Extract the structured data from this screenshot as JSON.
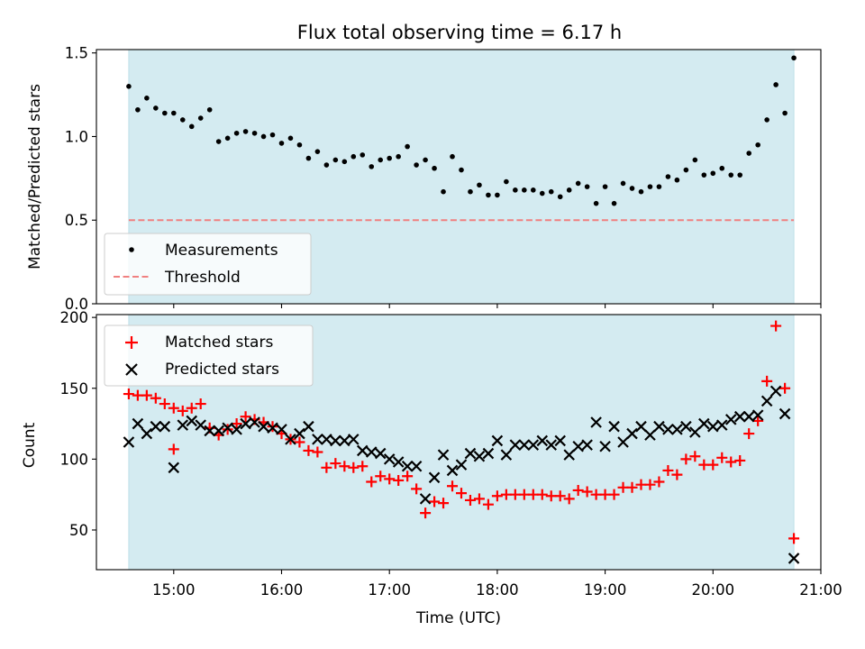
{
  "chart_data": [
    {
      "type": "scatter",
      "title": "Flux total observing time = 6.17 h",
      "ylabel": "Matched/Predicted stars",
      "xlabel": "",
      "ylim": [
        0,
        1.52
      ],
      "yticks": [
        "0.0",
        "0.5",
        "1.0",
        "1.5"
      ],
      "ytick_values": [
        0,
        0.5,
        1.0,
        1.5
      ],
      "shaded_span": [
        "14:35",
        "20:45"
      ],
      "shaded_color": "#d4ebf1",
      "legend": {
        "position": "lower-left"
      },
      "series": [
        {
          "name": "Measurements",
          "marker": "dot",
          "color": "#000000",
          "points": [
            [
              "14:35",
              1.3
            ],
            [
              "14:40",
              1.16
            ],
            [
              "14:45",
              1.23
            ],
            [
              "14:50",
              1.17
            ],
            [
              "14:55",
              1.14
            ],
            [
              "15:00",
              1.14
            ],
            [
              "15:05",
              1.1
            ],
            [
              "15:10",
              1.06
            ],
            [
              "15:15",
              1.11
            ],
            [
              "15:20",
              1.16
            ],
            [
              "15:25",
              0.97
            ],
            [
              "15:30",
              0.99
            ],
            [
              "15:35",
              1.02
            ],
            [
              "15:40",
              1.03
            ],
            [
              "15:45",
              1.02
            ],
            [
              "15:50",
              1.0
            ],
            [
              "15:55",
              1.01
            ],
            [
              "16:00",
              0.96
            ],
            [
              "16:05",
              0.99
            ],
            [
              "16:10",
              0.95
            ],
            [
              "16:15",
              0.87
            ],
            [
              "16:20",
              0.91
            ],
            [
              "16:25",
              0.83
            ],
            [
              "16:30",
              0.86
            ],
            [
              "16:35",
              0.85
            ],
            [
              "16:40",
              0.88
            ],
            [
              "16:45",
              0.89
            ],
            [
              "16:50",
              0.82
            ],
            [
              "16:55",
              0.86
            ],
            [
              "17:00",
              0.87
            ],
            [
              "17:05",
              0.88
            ],
            [
              "17:10",
              0.94
            ],
            [
              "17:15",
              0.83
            ],
            [
              "17:20",
              0.86
            ],
            [
              "17:25",
              0.81
            ],
            [
              "17:30",
              0.67
            ],
            [
              "17:35",
              0.88
            ],
            [
              "17:40",
              0.8
            ],
            [
              "17:45",
              0.67
            ],
            [
              "17:50",
              0.71
            ],
            [
              "17:55",
              0.65
            ],
            [
              "18:00",
              0.65
            ],
            [
              "18:05",
              0.73
            ],
            [
              "18:10",
              0.68
            ],
            [
              "18:15",
              0.68
            ],
            [
              "18:20",
              0.68
            ],
            [
              "18:25",
              0.66
            ],
            [
              "18:30",
              0.67
            ],
            [
              "18:35",
              0.64
            ],
            [
              "18:40",
              0.68
            ],
            [
              "18:45",
              0.72
            ],
            [
              "18:50",
              0.7
            ],
            [
              "18:55",
              0.6
            ],
            [
              "19:00",
              0.7
            ],
            [
              "19:05",
              0.6
            ],
            [
              "19:10",
              0.72
            ],
            [
              "19:15",
              0.69
            ],
            [
              "19:20",
              0.67
            ],
            [
              "19:25",
              0.7
            ],
            [
              "19:30",
              0.7
            ],
            [
              "19:35",
              0.76
            ],
            [
              "19:40",
              0.74
            ],
            [
              "19:45",
              0.8
            ],
            [
              "19:50",
              0.86
            ],
            [
              "19:55",
              0.77
            ],
            [
              "20:00",
              0.78
            ],
            [
              "20:05",
              0.81
            ],
            [
              "20:10",
              0.77
            ],
            [
              "20:15",
              0.77
            ],
            [
              "20:20",
              0.9
            ],
            [
              "20:25",
              0.95
            ],
            [
              "20:30",
              1.1
            ],
            [
              "20:35",
              1.31
            ],
            [
              "20:40",
              1.14
            ],
            [
              "20:45",
              1.47
            ]
          ]
        },
        {
          "name": "Threshold",
          "marker": "dashed-line",
          "color": "#f08080",
          "points": [
            [
              "14:35",
              0.5
            ],
            [
              "20:45",
              0.5
            ]
          ]
        }
      ]
    },
    {
      "type": "scatter",
      "title": "",
      "ylabel": "Count",
      "xlabel": "Time (UTC)",
      "ylim": [
        22,
        202
      ],
      "yticks": [
        "50",
        "100",
        "150",
        "200"
      ],
      "ytick_values": [
        50,
        100,
        150,
        200
      ],
      "xlim": [
        "14:17",
        "21:00"
      ],
      "xticks": [
        "15:00",
        "16:00",
        "17:00",
        "18:00",
        "19:00",
        "20:00",
        "21:00"
      ],
      "shaded_span": [
        "14:35",
        "20:45"
      ],
      "shaded_color": "#d4ebf1",
      "legend": {
        "position": "top-left"
      },
      "series": [
        {
          "name": "Matched stars",
          "marker": "plus",
          "color": "#ff0000",
          "points": [
            [
              "14:35",
              146
            ],
            [
              "14:40",
              145
            ],
            [
              "14:45",
              145
            ],
            [
              "14:50",
              143
            ],
            [
              "14:55",
              139
            ],
            [
              "15:00",
              107
            ],
            [
              "15:00",
              136
            ],
            [
              "15:05",
              134
            ],
            [
              "15:10",
              136
            ],
            [
              "15:15",
              139
            ],
            [
              "15:20",
              122
            ],
            [
              "15:25",
              117
            ],
            [
              "15:30",
              121
            ],
            [
              "15:35",
              125
            ],
            [
              "15:40",
              130
            ],
            [
              "15:45",
              128
            ],
            [
              "15:50",
              126
            ],
            [
              "15:55",
              123
            ],
            [
              "16:00",
              118
            ],
            [
              "16:05",
              114
            ],
            [
              "16:10",
              112
            ],
            [
              "16:15",
              106
            ],
            [
              "16:20",
              105
            ],
            [
              "16:25",
              94
            ],
            [
              "16:30",
              97
            ],
            [
              "16:35",
              95
            ],
            [
              "16:40",
              94
            ],
            [
              "16:45",
              95
            ],
            [
              "16:50",
              84
            ],
            [
              "16:55",
              88
            ],
            [
              "17:00",
              86
            ],
            [
              "17:05",
              85
            ],
            [
              "17:10",
              88
            ],
            [
              "17:15",
              79
            ],
            [
              "17:20",
              62
            ],
            [
              "17:25",
              70
            ],
            [
              "17:30",
              69
            ],
            [
              "17:35",
              81
            ],
            [
              "17:40",
              76
            ],
            [
              "17:45",
              71
            ],
            [
              "17:50",
              72
            ],
            [
              "17:55",
              68
            ],
            [
              "18:00",
              74
            ],
            [
              "18:05",
              75
            ],
            [
              "18:10",
              75
            ],
            [
              "18:15",
              75
            ],
            [
              "18:20",
              75
            ],
            [
              "18:25",
              75
            ],
            [
              "18:30",
              74
            ],
            [
              "18:35",
              74
            ],
            [
              "18:40",
              72
            ],
            [
              "18:45",
              78
            ],
            [
              "18:50",
              77
            ],
            [
              "18:55",
              75
            ],
            [
              "19:00",
              75
            ],
            [
              "19:05",
              75
            ],
            [
              "19:10",
              80
            ],
            [
              "19:15",
              80
            ],
            [
              "19:20",
              82
            ],
            [
              "19:25",
              82
            ],
            [
              "19:30",
              84
            ],
            [
              "19:35",
              92
            ],
            [
              "19:40",
              89
            ],
            [
              "19:45",
              100
            ],
            [
              "19:50",
              102
            ],
            [
              "19:55",
              96
            ],
            [
              "20:00",
              96
            ],
            [
              "20:05",
              101
            ],
            [
              "20:10",
              98
            ],
            [
              "20:15",
              99
            ],
            [
              "20:20",
              118
            ],
            [
              "20:25",
              127
            ],
            [
              "20:30",
              155
            ],
            [
              "20:35",
              194
            ],
            [
              "20:40",
              150
            ],
            [
              "20:45",
              44
            ]
          ]
        },
        {
          "name": "Predicted stars",
          "marker": "x",
          "color": "#000000",
          "points": [
            [
              "14:35",
              112
            ],
            [
              "14:40",
              125
            ],
            [
              "14:45",
              118
            ],
            [
              "14:50",
              123
            ],
            [
              "14:55",
              123
            ],
            [
              "15:00",
              94
            ],
            [
              "15:05",
              124
            ],
            [
              "15:10",
              127
            ],
            [
              "15:15",
              124
            ],
            [
              "15:20",
              120
            ],
            [
              "15:25",
              120
            ],
            [
              "15:30",
              122
            ],
            [
              "15:35",
              121
            ],
            [
              "15:40",
              125
            ],
            [
              "15:45",
              126
            ],
            [
              "15:50",
              123
            ],
            [
              "15:55",
              122
            ],
            [
              "16:00",
              121
            ],
            [
              "16:05",
              114
            ],
            [
              "16:10",
              118
            ],
            [
              "16:15",
              123
            ],
            [
              "16:20",
              114
            ],
            [
              "16:25",
              114
            ],
            [
              "16:30",
              113
            ],
            [
              "16:35",
              113
            ],
            [
              "16:40",
              114
            ],
            [
              "16:45",
              106
            ],
            [
              "16:50",
              105
            ],
            [
              "16:55",
              104
            ],
            [
              "17:00",
              100
            ],
            [
              "17:05",
              98
            ],
            [
              "17:10",
              95
            ],
            [
              "17:15",
              95
            ],
            [
              "17:20",
              72
            ],
            [
              "17:25",
              87
            ],
            [
              "17:30",
              103
            ],
            [
              "17:35",
              92
            ],
            [
              "17:40",
              96
            ],
            [
              "17:45",
              104
            ],
            [
              "17:50",
              102
            ],
            [
              "17:55",
              104
            ],
            [
              "18:00",
              113
            ],
            [
              "18:05",
              103
            ],
            [
              "18:10",
              110
            ],
            [
              "18:15",
              110
            ],
            [
              "18:20",
              110
            ],
            [
              "18:25",
              113
            ],
            [
              "18:30",
              110
            ],
            [
              "18:35",
              113
            ],
            [
              "18:40",
              103
            ],
            [
              "18:45",
              109
            ],
            [
              "18:50",
              110
            ],
            [
              "18:55",
              126
            ],
            [
              "19:00",
              109
            ],
            [
              "19:05",
              123
            ],
            [
              "19:10",
              112
            ],
            [
              "19:15",
              118
            ],
            [
              "19:20",
              123
            ],
            [
              "19:25",
              117
            ],
            [
              "19:30",
              123
            ],
            [
              "19:35",
              121
            ],
            [
              "19:40",
              121
            ],
            [
              "19:45",
              123
            ],
            [
              "19:50",
              119
            ],
            [
              "19:55",
              125
            ],
            [
              "20:00",
              123
            ],
            [
              "20:05",
              124
            ],
            [
              "20:10",
              128
            ],
            [
              "20:15",
              130
            ],
            [
              "20:20",
              130
            ],
            [
              "20:25",
              131
            ],
            [
              "20:30",
              141
            ],
            [
              "20:35",
              148
            ],
            [
              "20:40",
              132
            ],
            [
              "20:45",
              30
            ]
          ]
        }
      ]
    }
  ]
}
